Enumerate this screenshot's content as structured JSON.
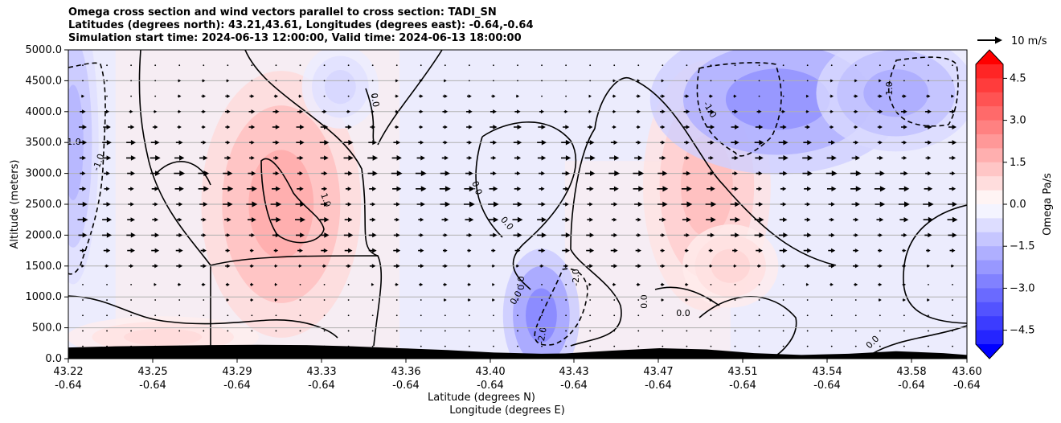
{
  "chart_data": {
    "type": "contour",
    "title_lines": [
      "Omega cross section and wind vectors parallel to cross section: TADI_SN",
      "Latitudes (degrees north): 43.21,43.61, Longitudes (degrees east): -0.64,-0.64",
      "Simulation start time: 2024-06-13 12:00:00, Valid time: 2024-06-13 18:00:00"
    ],
    "ylabel": "Altitude (meters)",
    "xlabel_lines": [
      "Latitude (degrees N)",
      "Longitude (degrees E)"
    ],
    "ylim": [
      0,
      5000
    ],
    "xlim": [
      43.22,
      43.6
    ],
    "y_ticks": [
      0,
      500,
      1000,
      1500,
      2000,
      2500,
      3000,
      3500,
      4000,
      4500,
      5000
    ],
    "y_tick_labels": [
      "0.0",
      "500.0",
      "1000.0",
      "1500.0",
      "2000.0",
      "2500.0",
      "3000.0",
      "3500.0",
      "4000.0",
      "4500.0",
      "5000.0"
    ],
    "x_ticks": [
      {
        "lat": "43.22",
        "lon": "-0.64"
      },
      {
        "lat": "43.25",
        "lon": "-0.64"
      },
      {
        "lat": "43.29",
        "lon": "-0.64"
      },
      {
        "lat": "43.33",
        "lon": "-0.64"
      },
      {
        "lat": "43.36",
        "lon": "-0.64"
      },
      {
        "lat": "43.40",
        "lon": "-0.64"
      },
      {
        "lat": "43.43",
        "lon": "-0.64"
      },
      {
        "lat": "43.47",
        "lon": "-0.64"
      },
      {
        "lat": "43.51",
        "lon": "-0.64"
      },
      {
        "lat": "43.54",
        "lon": "-0.64"
      },
      {
        "lat": "43.58",
        "lon": "-0.64"
      },
      {
        "lat": "43.60",
        "lon": "-0.64"
      }
    ],
    "grid": "horizontal",
    "colorbar": {
      "label": "Omega Pa/s",
      "range": [
        -5,
        5
      ],
      "ticks": [
        4.5,
        3.0,
        1.5,
        0.0,
        -1.5,
        -3.0,
        -4.5
      ],
      "tick_labels": [
        "4.5",
        "3.0",
        "1.5",
        "0.0",
        "−1.5",
        "−3.0",
        "−4.5"
      ],
      "colormap": "bwr",
      "negative_color": "#0000ff",
      "positive_color": "#ff0000",
      "extend": "both"
    },
    "contour_labels": [
      "0.0",
      "0.0",
      "0.0",
      "0.0",
      "0.0",
      "0.0",
      "0.0",
      "0.0",
      "-1.0",
      "-1.0",
      "-1.0",
      "-1.0",
      "-2.0",
      "-2.0",
      "1.0"
    ],
    "quiver_key": {
      "label": "10 m/s",
      "speed_ms": 10
    },
    "terrain_color": "#000000",
    "terrain": {
      "lat": [
        43.22,
        43.24,
        43.26,
        43.28,
        43.3,
        43.32,
        43.34,
        43.36,
        43.38,
        43.4,
        43.42,
        43.43,
        43.45,
        43.47,
        43.49,
        43.51,
        43.53,
        43.55,
        43.57,
        43.59,
        43.6
      ],
      "alt_m": [
        180,
        200,
        210,
        220,
        225,
        220,
        200,
        170,
        140,
        100,
        80,
        85,
        130,
        170,
        150,
        90,
        60,
        80,
        120,
        90,
        60
      ]
    },
    "omega_fields": [
      {
        "center": [
          43.31,
          2500
        ],
        "radius": [
          0.025,
          1600
        ],
        "value": 1.8
      },
      {
        "center": [
          43.49,
          2800
        ],
        "radius": [
          0.02,
          1500
        ],
        "value": 1.4
      },
      {
        "center": [
          43.52,
          4200
        ],
        "radius": [
          0.04,
          900
        ],
        "value": -2.3
      },
      {
        "center": [
          43.57,
          4300
        ],
        "radius": [
          0.025,
          700
        ],
        "value": -1.8
      },
      {
        "center": [
          43.42,
          700
        ],
        "radius": [
          0.012,
          800
        ],
        "value": -2.6
      },
      {
        "center": [
          43.222,
          3500
        ],
        "radius": [
          0.008,
          1700
        ],
        "value": -1.6
      },
      {
        "center": [
          43.26,
          350
        ],
        "radius": [
          0.03,
          250
        ],
        "value": 0.8
      },
      {
        "center": [
          43.335,
          4400
        ],
        "radius": [
          0.012,
          500
        ],
        "value": -0.9
      },
      {
        "center": [
          43.5,
          1500
        ],
        "radius": [
          0.015,
          500
        ],
        "value": 0.9
      }
    ],
    "wind": {
      "rows_alt_m": [
        200,
        450,
        700,
        950,
        1200,
        1500,
        1750,
        2000,
        2250,
        2500,
        2750,
        3000,
        3250,
        3500,
        3750,
        4000,
        4250,
        4500,
        4750
      ],
      "cols": 37,
      "speed_ms": [
        1.0,
        1.2,
        1.5,
        2.0,
        2.5,
        4.0,
        5.0,
        6.0,
        6.5,
        7.0,
        7.0,
        7.0,
        6.5,
        6.0,
        5.0,
        4.0,
        3.0,
        2.0,
        1.5
      ],
      "direction": "parallel to cross section, toward north"
    }
  }
}
